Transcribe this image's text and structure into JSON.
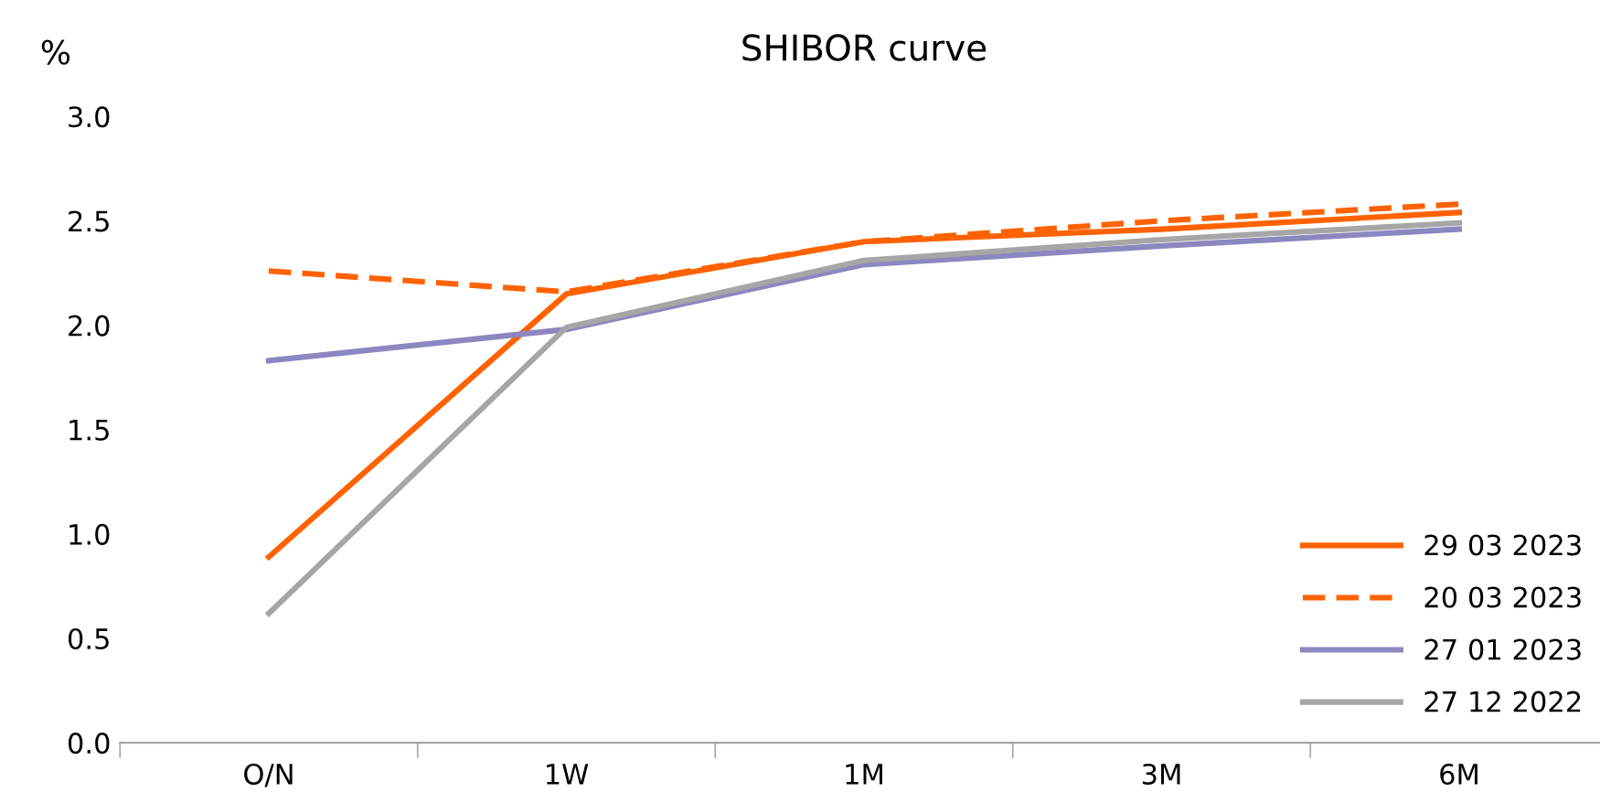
{
  "chart_data": {
    "type": "line",
    "title": "SHIBOR curve",
    "ylabel": "%",
    "categories": [
      "O/N",
      "1W",
      "1M",
      "3M",
      "6M"
    ],
    "series": [
      {
        "name": "29 03 2023",
        "color": "#ff6200",
        "line_style": "solid",
        "values": [
          0.89,
          2.15,
          2.4,
          2.46,
          2.54
        ]
      },
      {
        "name": "20 03 2023",
        "color": "#ff6200",
        "line_style": "dashed",
        "values": [
          2.26,
          2.16,
          2.4,
          2.5,
          2.58
        ]
      },
      {
        "name": "27 01 2023",
        "color": "#8c87c0",
        "line_style": "solid",
        "values": [
          1.83,
          1.98,
          2.29,
          2.38,
          2.46
        ]
      },
      {
        "name": "27 12 2022",
        "color": "#a6a6a6",
        "line_style": "solid",
        "values": [
          0.62,
          1.99,
          2.31,
          2.41,
          2.49
        ]
      }
    ],
    "ylim": [
      0,
      3.0
    ],
    "yticks": [
      {
        "value": 0,
        "label": "0.0"
      },
      {
        "value": 0.5,
        "label": "0.5"
      },
      {
        "value": 1.0,
        "label": "1.0"
      },
      {
        "value": 1.5,
        "label": "1.5"
      },
      {
        "value": 2.0,
        "label": "2.0"
      },
      {
        "value": 2.5,
        "label": "2.5"
      },
      {
        "value": 3.0,
        "label": "3.0"
      }
    ],
    "grid": false,
    "legend": "bottom right",
    "marker": "none"
  }
}
